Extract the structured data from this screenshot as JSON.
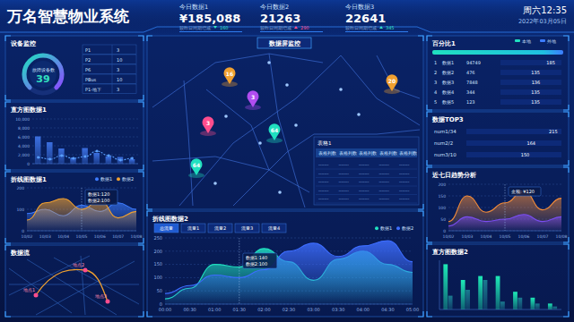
{
  "header": {
    "title": "万名智慧物业系统",
    "time": "周六12:35",
    "date": "2022年03月05日"
  },
  "kpis": [
    {
      "label": "今日数据1",
      "value": "¥185,088",
      "compare_label": "较昨日同期增减",
      "change": 160,
      "direction": "down"
    },
    {
      "label": "今日数据2",
      "value": "21263",
      "compare_label": "较昨日同期增减",
      "change": 290,
      "direction": "up"
    },
    {
      "label": "今日数据3",
      "value": "22641",
      "compare_label": "较昨日同期增减",
      "change": 345,
      "direction": "up"
    }
  ],
  "device_monitor": {
    "title": "设备监控",
    "gauge_label": "故障设备数",
    "gauge_value": 39,
    "rows": [
      [
        "P1",
        3
      ],
      [
        "P2",
        10
      ],
      [
        "P6",
        3
      ],
      [
        "PBus",
        10
      ],
      [
        "P1-地下",
        3
      ]
    ]
  },
  "data_flow": {
    "title": "数据流",
    "places": [
      "地点1",
      "地点2",
      "地点3"
    ]
  },
  "map": {
    "title": "数据屏监控",
    "markers": [
      16,
      3,
      3,
      64,
      64,
      20
    ]
  },
  "table": {
    "title": "表格1",
    "header": [
      "表格列数",
      "表格列数",
      "表格列数",
      "表格列数",
      "表格列数"
    ],
    "rows": [
      [
        "-------",
        "-------",
        "-------",
        "-------",
        "-------"
      ],
      [
        "-------",
        "-------",
        "-------",
        "-------",
        "-------"
      ],
      [
        "-------",
        "-------",
        "-------",
        "-------",
        "-------"
      ],
      [
        "-------",
        "-------",
        "-------",
        "-------",
        "-------"
      ],
      [
        "-------",
        "-------",
        "-------",
        "-------",
        "-------"
      ]
    ]
  },
  "chart_data": [
    {
      "title": "直方图数据1",
      "type": "bar",
      "categories": [
        null,
        null,
        null,
        null,
        null,
        null,
        null,
        null,
        null
      ],
      "series": [
        {
          "type": "bar",
          "color": "#3b6fe0",
          "values": [
            6100,
            4800,
            3400,
            1300,
            3500,
            2400,
            1600,
            1500,
            1000
          ]
        },
        {
          "type": "line",
          "color": "#5aa0ff",
          "marker": "circle",
          "line_style": "dashed",
          "values": [
            1400,
            1000,
            1800,
            1200,
            1600,
            2800,
            1800,
            800,
            1200
          ]
        }
      ],
      "ylim": [
        0,
        10000
      ],
      "yticks": [
        0,
        {
          "value": 2000,
          "label": "2,000"
        },
        {
          "value": 4000,
          "label": "4,000"
        },
        {
          "value": 6000,
          "label": "6,000"
        },
        {
          "value": 8000,
          "label": "8,000"
        },
        {
          "value": 10000,
          "label": "10,000"
        }
      ],
      "grid": true,
      "tick_labels": "y"
    },
    {
      "title": "折线图数据1",
      "type": "area",
      "categories": [
        "10/02",
        "10/03",
        "10/04",
        "10/05",
        "10/06",
        "10/07",
        "10/08"
      ],
      "series": [
        {
          "name": "数据1",
          "color": "#3d7cff",
          "values": [
            80,
            100,
            70,
            120,
            90,
            130,
            100
          ]
        },
        {
          "name": "数据2",
          "color": "#f0a030",
          "values": [
            50,
            130,
            150,
            100,
            140,
            60,
            90
          ]
        }
      ],
      "ylim": [
        0,
        200
      ],
      "yticks": [
        0,
        100,
        200
      ],
      "grid": true,
      "legend": "top-right",
      "annotations": [
        "数据1:120",
        "数据2:100"
      ]
    },
    {
      "title": "近七日趋势分析",
      "type": "area",
      "categories": [
        "10/02",
        "10/03",
        "10/04",
        "10/05",
        "10/06",
        "10/07",
        "10/08"
      ],
      "series": [
        {
          "color": "#f08a3a",
          "values": [
            40,
            150,
            80,
            120,
            170,
            90,
            140
          ]
        },
        {
          "color": "#7a4df0",
          "values": [
            20,
            60,
            40,
            50,
            70,
            40,
            60
          ]
        }
      ],
      "ylim": [
        0,
        200
      ],
      "yticks": [
        0,
        50,
        100,
        150,
        200
      ],
      "grid": true,
      "annotations": [
        "金额: ¥120"
      ]
    },
    {
      "title": "折线图数据2",
      "type": "area",
      "tabs": [
        "总流量",
        "流量1",
        "流量2",
        "流量3",
        "流量4"
      ],
      "categories": [
        "00:00",
        "00:30",
        "01:00",
        "01:30",
        "02:00",
        "02:30",
        "03:00",
        "03:30",
        "04:00",
        "04:30",
        "05:00"
      ],
      "series": [
        {
          "name": "数据1",
          "color": "#20e0c0",
          "values": [
            20,
            60,
            150,
            140,
            210,
            160,
            90,
            170,
            200,
            150,
            120
          ]
        },
        {
          "name": "数据2",
          "color": "#3d6dff",
          "values": [
            40,
            70,
            110,
            100,
            130,
            200,
            230,
            180,
            220,
            240,
            160
          ]
        }
      ],
      "ylim": [
        0,
        250
      ],
      "yticks": [
        0,
        50,
        100,
        150,
        200,
        250
      ],
      "grid": true,
      "legend": "top-right",
      "annotations": [
        "数据1:140",
        "数据2:100"
      ]
    },
    {
      "title": "百分比1",
      "type": "bar",
      "orientation": "horizontal",
      "legend_labels": [
        "本地",
        "外地"
      ],
      "ranks": [
        "1",
        "2",
        "3",
        "4",
        "5"
      ],
      "categories": [
        "数据1",
        "数据2",
        "数据3",
        "数据4",
        "数据5"
      ],
      "amounts": [
        "94749",
        "476",
        "7848",
        "344",
        "123"
      ],
      "values": [
        185,
        135,
        136,
        135,
        135
      ],
      "xlim": [
        0,
        200
      ],
      "data_labels": true,
      "tick_labels": false,
      "color": "#3d7cff"
    },
    {
      "title": "数据TOP3",
      "type": "bar",
      "orientation": "horizontal",
      "categories": [
        "num1/34",
        "num2/2",
        "num3/10"
      ],
      "values": [
        215,
        164,
        150
      ],
      "xlim": [
        0,
        220
      ],
      "data_labels": true,
      "tick_labels": false,
      "colors": [
        "#f07a3a",
        "#3d7cff",
        "#3d7cff"
      ]
    },
    {
      "title": "直方图数据2",
      "type": "bar",
      "categories": [
        null,
        null,
        null,
        null,
        null,
        null,
        null
      ],
      "series": [
        {
          "color": "#1de9b6",
          "values": [
            230,
            150,
            170,
            170,
            90,
            60,
            30
          ]
        },
        {
          "color": "#1a7a90",
          "values": [
            70,
            100,
            150,
            40,
            60,
            30,
            15
          ]
        }
      ],
      "ylim": [
        0,
        250
      ],
      "tick_labels": false
    }
  ]
}
